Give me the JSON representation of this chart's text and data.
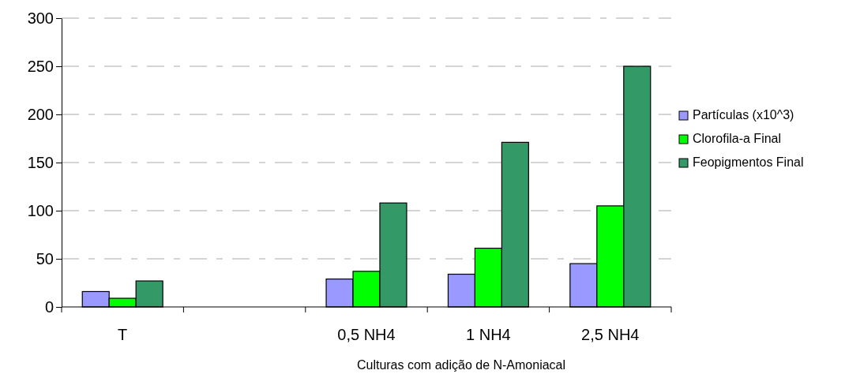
{
  "chart_data": {
    "type": "bar",
    "xlabel": "Culturas com adição de N-Amoniacal",
    "categories": [
      "T",
      null,
      "0,5 NH4",
      "1 NH4",
      "2,5 NH4"
    ],
    "series": [
      {
        "name": "Partículas (x10^3)",
        "color": "#9999ff",
        "values": [
          16,
          null,
          29,
          34,
          45
        ]
      },
      {
        "name": "Clorofila-a Final",
        "color": "#00ff00",
        "values": [
          9,
          null,
          37,
          61,
          105
        ]
      },
      {
        "name": "Feopigmentos Final",
        "color": "#339966",
        "values": [
          27,
          null,
          108,
          171,
          250
        ]
      }
    ],
    "ylim": [
      0,
      300
    ],
    "yticks": [
      0,
      50,
      100,
      150,
      200,
      250,
      300
    ],
    "grid": "y",
    "legend": "right"
  }
}
